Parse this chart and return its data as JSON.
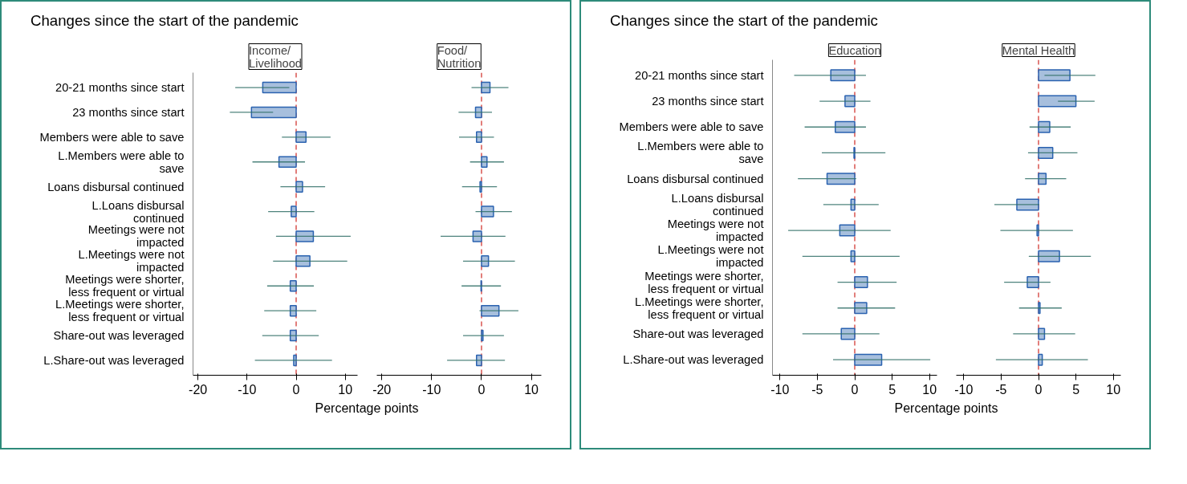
{
  "chart_data": [
    {
      "type": "bar",
      "orientation": "horizontal",
      "title": "Changes since the start of the pandemic",
      "subtitle": "Income/\nLivelihood",
      "xlabel": "Percentage points",
      "categories": [
        "20-21 months since start",
        "23 months since start",
        "Members were able to save",
        "L.Members were able to\nsave",
        "Loans disbursal continued",
        "L.Loans disbursal\ncontinued",
        "Meetings were not\nimpacted",
        "L.Meetings were not\nimpacted",
        "Meetings were shorter,\nless frequent or virtual",
        "L.Meetings were shorter,\nless frequent or virtual",
        "Share-out was leveraged",
        "L.Share-out was leveraged"
      ],
      "series": [
        {
          "color": "#a7bfdd",
          "values": [
            -6.8,
            -9.1,
            2.0,
            -3.5,
            1.3,
            -1.0,
            3.5,
            2.8,
            -1.2,
            -1.2,
            -1.2,
            -0.5
          ],
          "errors": [
            [
              -12.4,
              -1.4
            ],
            [
              -13.5,
              -4.7
            ],
            [
              -2.9,
              7.0
            ],
            [
              -8.9,
              1.8
            ],
            [
              -3.2,
              5.9
            ],
            [
              -5.7,
              3.7
            ],
            [
              -4.1,
              11.1
            ],
            [
              -4.7,
              10.4
            ],
            [
              -5.9,
              3.6
            ],
            [
              -6.5,
              4.1
            ],
            [
              -6.9,
              4.6
            ],
            [
              -8.4,
              7.3
            ]
          ]
        }
      ],
      "xlim": [
        -21,
        12.5
      ],
      "xticks": [
        -20,
        -10,
        0,
        10
      ],
      "grid": false,
      "ref_lines": [
        {
          "axis": "x",
          "value": 0,
          "color": "#d9534f",
          "line_style": "dashed"
        }
      ]
    },
    {
      "type": "bar",
      "orientation": "horizontal",
      "subtitle": "Food/\nNutrition",
      "tick_labels": "x",
      "series": [
        {
          "color": "#a7bfdd",
          "values": [
            1.7,
            -1.2,
            -1.0,
            1.1,
            -0.3,
            2.4,
            -1.7,
            1.4,
            -0.1,
            3.5,
            0.3,
            -1.0
          ],
          "errors": [
            [
              -2.0,
              5.4
            ],
            [
              -4.6,
              2.1
            ],
            [
              -4.5,
              2.5
            ],
            [
              -2.3,
              4.5
            ],
            [
              -3.9,
              3.1
            ],
            [
              -1.2,
              6.1
            ],
            [
              -8.2,
              4.8
            ],
            [
              -3.7,
              6.7
            ],
            [
              -4.0,
              3.9
            ],
            [
              -0.4,
              7.4
            ],
            [
              -3.7,
              4.5
            ],
            [
              -6.9,
              4.7
            ]
          ]
        }
      ],
      "xlim": [
        -21,
        12
      ],
      "xticks": [
        -20,
        -10,
        0,
        10
      ],
      "grid": false,
      "ref_lines": [
        {
          "axis": "x",
          "value": 0,
          "color": "#d9534f",
          "line_style": "dashed"
        }
      ]
    },
    {
      "type": "bar",
      "orientation": "horizontal",
      "title": "Changes since the start of the pandemic",
      "subtitle": "Education",
      "xlabel": "Percentage points",
      "categories": [
        "20-21 months since start",
        "23 months since start",
        "Members were able to save",
        "L.Members were able to\nsave",
        "Loans disbursal continued",
        "L.Loans disbursal\ncontinued",
        "Meetings were not\nimpacted",
        "L.Meetings were not\nimpacted",
        "Meetings were shorter,\nless frequent or virtual",
        "L.Meetings were shorter,\nless frequent or virtual",
        "Share-out was leveraged",
        "L.Share-out was leveraged"
      ],
      "series": [
        {
          "color": "#a7bfdd",
          "values": [
            -3.2,
            -1.3,
            -2.6,
            -0.1,
            -3.7,
            -0.5,
            -2.0,
            -0.5,
            1.7,
            1.6,
            -1.8,
            3.6
          ],
          "errors": [
            [
              -8.1,
              1.5
            ],
            [
              -4.7,
              2.1
            ],
            [
              -6.7,
              1.5
            ],
            [
              -4.4,
              4.1
            ],
            [
              -7.6,
              0.2
            ],
            [
              -4.2,
              3.2
            ],
            [
              -8.9,
              4.8
            ],
            [
              -7.0,
              6.0
            ],
            [
              -2.3,
              5.6
            ],
            [
              -2.3,
              5.4
            ],
            [
              -7.0,
              3.3
            ],
            [
              -2.9,
              10.1
            ]
          ]
        }
      ],
      "xlim": [
        -11,
        11
      ],
      "xticks": [
        -10,
        -5,
        0,
        5,
        10
      ],
      "grid": false,
      "ref_lines": [
        {
          "axis": "x",
          "value": 0,
          "color": "#d9534f",
          "line_style": "dashed"
        }
      ]
    },
    {
      "type": "bar",
      "orientation": "horizontal",
      "subtitle": "Mental Health",
      "tick_labels": "x",
      "series": [
        {
          "color": "#a7bfdd",
          "values": [
            4.2,
            5.0,
            1.5,
            1.9,
            1.0,
            -2.9,
            -0.2,
            2.8,
            -1.5,
            0.2,
            0.8,
            0.5
          ],
          "errors": [
            [
              0.8,
              7.6
            ],
            [
              2.6,
              7.5
            ],
            [
              -1.2,
              4.3
            ],
            [
              -1.4,
              5.2
            ],
            [
              -1.8,
              3.7
            ],
            [
              -5.9,
              0.1
            ],
            [
              -5.1,
              4.6
            ],
            [
              -1.3,
              7.0
            ],
            [
              -4.6,
              1.6
            ],
            [
              -2.6,
              3.1
            ],
            [
              -3.4,
              4.9
            ],
            [
              -5.7,
              6.6
            ]
          ]
        }
      ],
      "xlim": [
        -11,
        11
      ],
      "xticks": [
        -10,
        -5,
        0,
        5,
        10
      ],
      "grid": false,
      "ref_lines": [
        {
          "axis": "x",
          "value": 0,
          "color": "#d9534f",
          "line_style": "dashed"
        }
      ]
    }
  ]
}
